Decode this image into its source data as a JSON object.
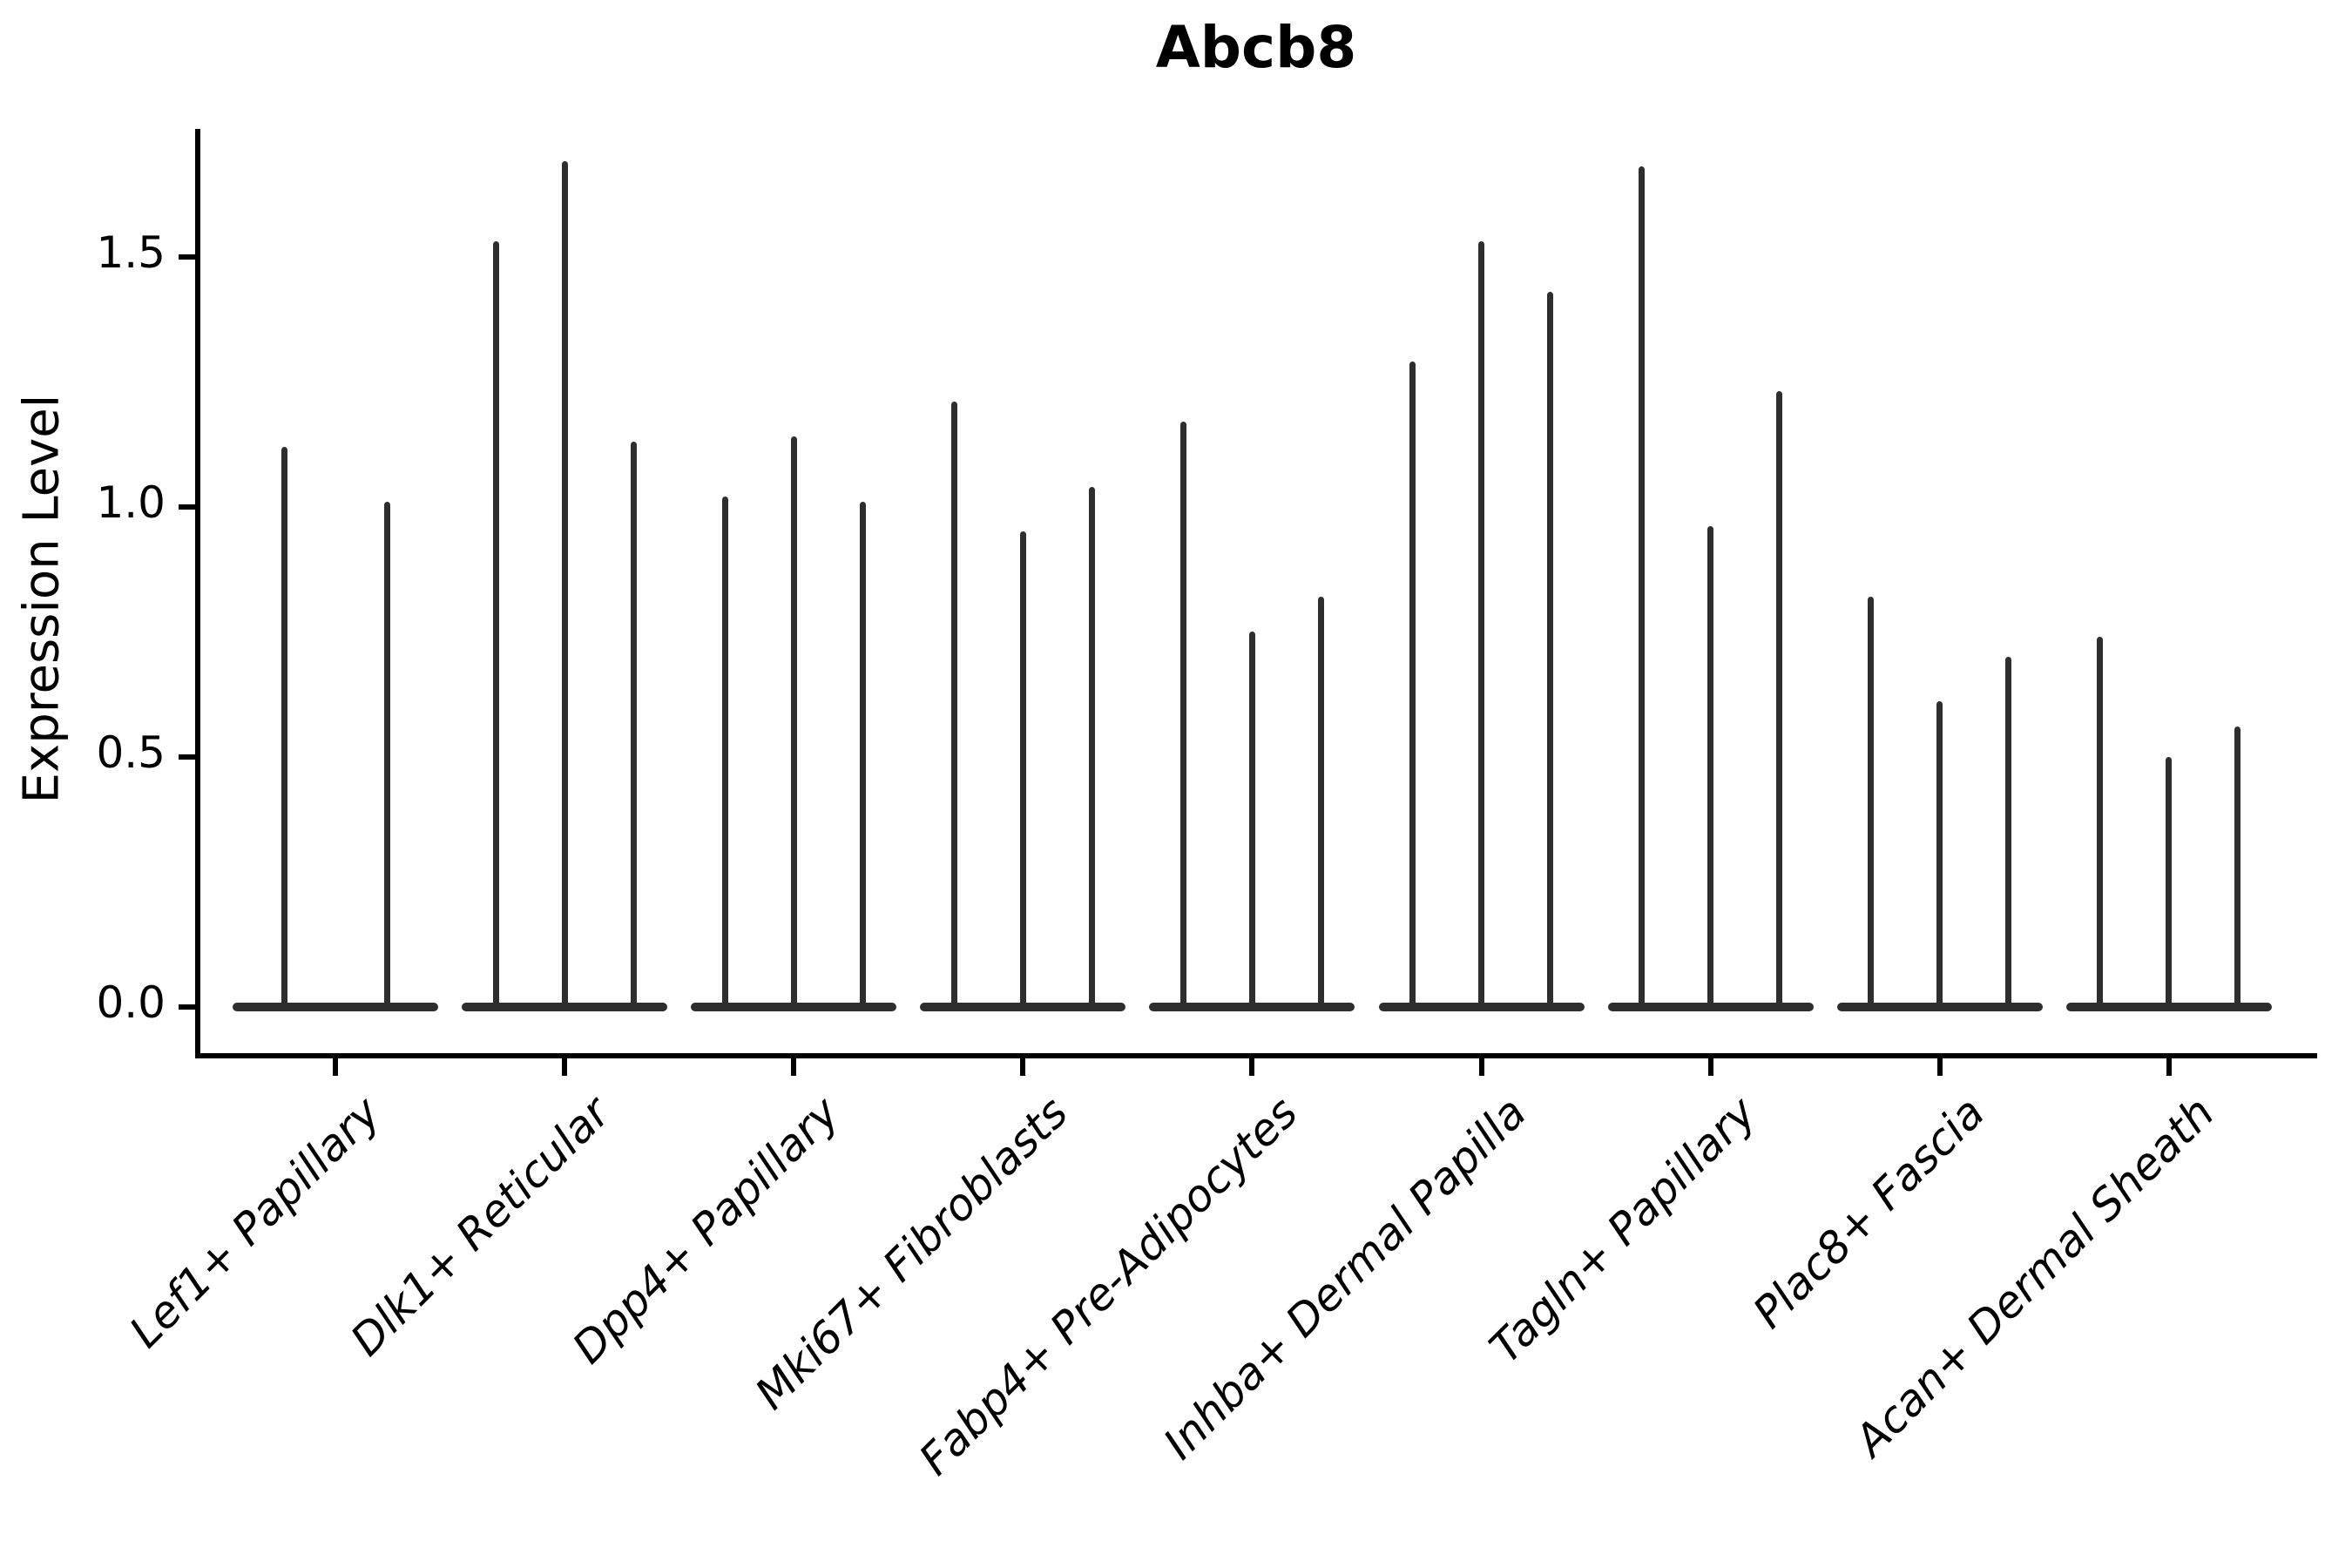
{
  "chart_data": {
    "type": "violin",
    "title": "Abcb8",
    "xlabel": "",
    "ylabel": "Expression Level",
    "legend": "none",
    "grid": false,
    "ylim": [
      -0.1,
      1.78
    ],
    "yticks": [
      {
        "label": "0.0",
        "value": 0.0
      },
      {
        "label": "0.5",
        "value": 0.5
      },
      {
        "label": "1.0",
        "value": 1.0
      },
      {
        "label": "1.5",
        "value": 1.5
      }
    ],
    "description": "Stacked-violin style gene expression plot; each cell-type category shows 2-3 very thin violins whose mass is concentrated at 0 with a narrow tail reaching the listed maximum expression value.",
    "categories": [
      {
        "label": "Lef1+ Papillary",
        "violin_max": [
          1.12,
          1.01
        ]
      },
      {
        "label": "Dlk1+ Reticular",
        "violin_max": [
          1.53,
          1.69,
          1.13
        ]
      },
      {
        "label": "Dpp4+ Papillary",
        "violin_max": [
          1.02,
          1.14,
          1.01
        ]
      },
      {
        "label": "Mki67+ Fibroblasts",
        "violin_max": [
          1.21,
          0.95,
          1.04
        ]
      },
      {
        "label": "Fabp4+ Pre-Adipocytes",
        "violin_max": [
          1.17,
          0.75,
          0.82
        ]
      },
      {
        "label": "Inhba+ Dermal Papilla",
        "violin_max": [
          1.29,
          1.53,
          1.43
        ]
      },
      {
        "label": "Tagln+ Papillary",
        "violin_max": [
          1.68,
          0.96,
          1.23
        ]
      },
      {
        "label": "Plac8+ Fascia",
        "violin_max": [
          0.82,
          0.61,
          0.7
        ]
      },
      {
        "label": "Acan+ Dermal Sheath",
        "violin_max": [
          0.74,
          0.5,
          0.56
        ]
      }
    ],
    "colors": {
      "violin": "#2e2e2e",
      "axis": "#000000",
      "text": "#000000",
      "background": "#ffffff"
    }
  }
}
